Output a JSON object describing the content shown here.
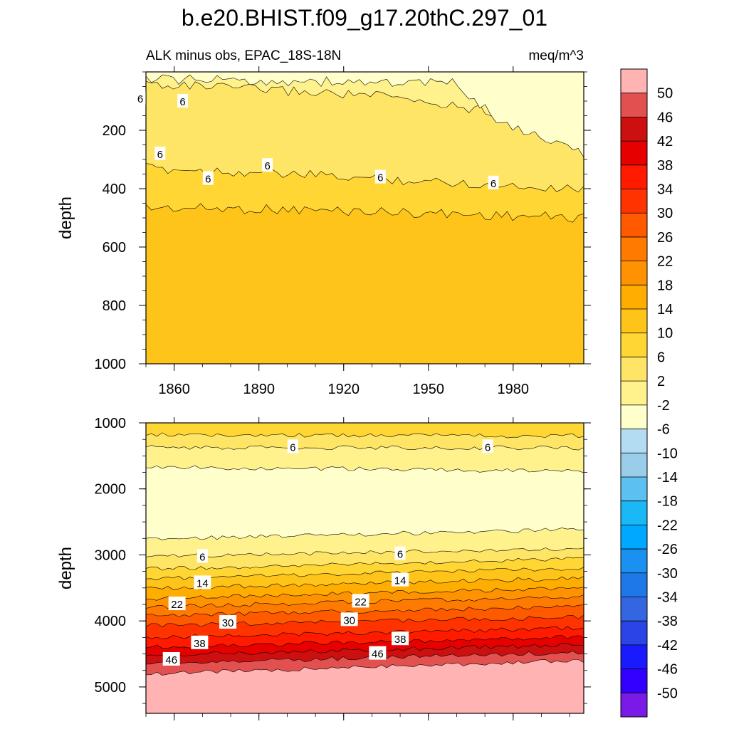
{
  "title": "b.e20.BHIST.f09_g17.20thC.297_01",
  "subtitle_left": "ALK minus obs, EPAC_18S-18N",
  "subtitle_right": "meq/m^3",
  "colorbar": {
    "labels": [
      "50",
      "46",
      "42",
      "38",
      "34",
      "30",
      "26",
      "22",
      "18",
      "14",
      "10",
      "6",
      "2",
      "-2",
      "-6",
      "-10",
      "-14",
      "-18",
      "-22",
      "-26",
      "-30",
      "-34",
      "-38",
      "-42",
      "-46",
      "-50"
    ],
    "colors": [
      "#ffb3b3",
      "#e35050",
      "#cc1010",
      "#e60000",
      "#ff1a00",
      "#ff3300",
      "#ff5a00",
      "#ff7a00",
      "#ff9200",
      "#ffad00",
      "#ffc41a",
      "#ffd633",
      "#ffe566",
      "#fff28c",
      "#ffffcc",
      "#b3dcf2",
      "#99cdea",
      "#5cc0f0",
      "#1ab8f5",
      "#00a8ff",
      "#1a90f0",
      "#1f78e8",
      "#3366e0",
      "#2a44e6",
      "#1a1aff",
      "#3300ff",
      "#7a1ae6"
    ]
  },
  "chart_data": [
    {
      "type": "contour",
      "name": "upper",
      "xlabel": "",
      "ylabel": "depth",
      "xlim": [
        1850,
        2005
      ],
      "ylim": [
        0,
        1000
      ],
      "y_reversed": true,
      "xticks": [
        1860,
        1890,
        1920,
        1950,
        1980
      ],
      "xtick_labels": [
        "1860",
        "1890",
        "1920",
        "1950",
        "1980"
      ],
      "yticks": [
        200,
        400,
        600,
        800,
        1000
      ],
      "ytick_labels": [
        "200",
        "400",
        "600",
        "800",
        "1000"
      ],
      "bands": [
        {
          "level": 10,
          "color": "#ffc41a",
          "profile_x": [
            1850,
            2005
          ],
          "profile_y": [
            1000,
            1000
          ]
        },
        {
          "level": 6,
          "color": "#ffd633",
          "profile_x": [
            1850,
            1890,
            1930,
            1970,
            2005
          ],
          "profile_y": [
            465,
            470,
            478,
            490,
            500
          ]
        },
        {
          "level": 2,
          "color": "#ffe566",
          "profile_x": [
            1850,
            1890,
            1930,
            1970,
            2005
          ],
          "profile_y": [
            330,
            345,
            365,
            385,
            400
          ]
        },
        {
          "level": -2,
          "color": "#fff28c",
          "profile_x": [
            1850,
            1890,
            1930,
            1970,
            2005
          ],
          "profile_y": [
            40,
            60,
            80,
            130,
            210
          ]
        },
        {
          "level": -6,
          "color": "#ffffcc",
          "profile_x": [
            1850,
            1960,
            1975,
            2005
          ],
          "profile_y": [
            25,
            40,
            170,
            280
          ]
        }
      ],
      "annotations": [
        {
          "text": "6",
          "x": 1848,
          "y": 90
        },
        {
          "text": "6",
          "x": 1863,
          "y": 100
        },
        {
          "text": "6",
          "x": 1855,
          "y": 280
        },
        {
          "text": "6",
          "x": 1893,
          "y": 320
        },
        {
          "text": "6",
          "x": 1872,
          "y": 365
        },
        {
          "text": "6",
          "x": 1933,
          "y": 360
        },
        {
          "text": "6",
          "x": 1973,
          "y": 380
        }
      ]
    },
    {
      "type": "contour",
      "name": "lower",
      "xlabel": "",
      "ylabel": "depth",
      "xlim": [
        1850,
        2005
      ],
      "ylim": [
        1000,
        5400
      ],
      "y_reversed": true,
      "xticks": [
        1860,
        1890,
        1920,
        1950,
        1980
      ],
      "xtick_labels": [],
      "yticks": [
        1000,
        2000,
        3000,
        4000,
        5000
      ],
      "ytick_labels": [
        "1000",
        "2000",
        "3000",
        "4000",
        "5000"
      ],
      "bands": [
        {
          "level": 50,
          "color": "#ffb3b3",
          "profile_x": [
            1850,
            2005
          ],
          "profile_y": [
            5400,
            5400
          ]
        },
        {
          "level": 46,
          "color": "#e35050",
          "profile_x": [
            1850,
            2005
          ],
          "profile_y": [
            4800,
            4600
          ]
        },
        {
          "level": 42,
          "color": "#cc1010",
          "profile_x": [
            1850,
            2005
          ],
          "profile_y": [
            4650,
            4470
          ]
        },
        {
          "level": 38,
          "color": "#e60000",
          "profile_x": [
            1850,
            2005
          ],
          "profile_y": [
            4520,
            4360
          ]
        },
        {
          "level": 34,
          "color": "#ff1a00",
          "profile_x": [
            1850,
            2005
          ],
          "profile_y": [
            4400,
            4240
          ]
        },
        {
          "level": 30,
          "color": "#ff3300",
          "profile_x": [
            1850,
            2005
          ],
          "profile_y": [
            4250,
            4110
          ]
        },
        {
          "level": 26,
          "color": "#ff5a00",
          "profile_x": [
            1850,
            2005
          ],
          "profile_y": [
            4070,
            3940
          ]
        },
        {
          "level": 22,
          "color": "#ff7a00",
          "profile_x": [
            1850,
            2005
          ],
          "profile_y": [
            3920,
            3780
          ]
        },
        {
          "level": 18,
          "color": "#ff9200",
          "profile_x": [
            1850,
            2005
          ],
          "profile_y": [
            3790,
            3630
          ]
        },
        {
          "level": 14,
          "color": "#ffad00",
          "profile_x": [
            1850,
            2005
          ],
          "profile_y": [
            3660,
            3500
          ]
        },
        {
          "level": 10,
          "color": "#ffc41a",
          "profile_x": [
            1850,
            2005
          ],
          "profile_y": [
            3510,
            3350
          ]
        },
        {
          "level": 6,
          "color": "#ffd633",
          "profile_x": [
            1850,
            2005
          ],
          "profile_y": [
            3360,
            3200
          ]
        },
        {
          "level": 2,
          "color": "#ffe566",
          "profile_x": [
            1850,
            2005
          ],
          "profile_y": [
            3210,
            3060
          ]
        },
        {
          "level": -2,
          "color": "#fff28c",
          "profile_x": [
            1850,
            2005
          ],
          "profile_y": [
            3020,
            2900
          ]
        },
        {
          "level": -6,
          "color": "#ffffcc",
          "profile_x": [
            1850,
            2005
          ],
          "profile_y": [
            2760,
            2610
          ]
        },
        {
          "level": -2,
          "color": "#fff28c",
          "profile_x": [
            1850,
            2005
          ],
          "profile_y": [
            1670,
            1730
          ]
        },
        {
          "level": 2,
          "color": "#ffe566",
          "profile_x": [
            1850,
            2005
          ],
          "profile_y": [
            1370,
            1380
          ]
        },
        {
          "level": 6,
          "color": "#ffd633",
          "profile_x": [
            1850,
            2005
          ],
          "profile_y": [
            1180,
            1200
          ]
        }
      ],
      "annotations": [
        {
          "text": "6",
          "x": 1902,
          "y": 1360
        },
        {
          "text": "6",
          "x": 1971,
          "y": 1360
        },
        {
          "text": "6",
          "x": 1870,
          "y": 3020
        },
        {
          "text": "6",
          "x": 1940,
          "y": 2980
        },
        {
          "text": "14",
          "x": 1870,
          "y": 3420
        },
        {
          "text": "14",
          "x": 1940,
          "y": 3380
        },
        {
          "text": "22",
          "x": 1861,
          "y": 3740
        },
        {
          "text": "22",
          "x": 1926,
          "y": 3700
        },
        {
          "text": "30",
          "x": 1879,
          "y": 4020
        },
        {
          "text": "30",
          "x": 1922,
          "y": 3980
        },
        {
          "text": "38",
          "x": 1869,
          "y": 4330
        },
        {
          "text": "38",
          "x": 1940,
          "y": 4270
        },
        {
          "text": "46",
          "x": 1859,
          "y": 4580
        },
        {
          "text": "46",
          "x": 1932,
          "y": 4490
        }
      ]
    }
  ]
}
